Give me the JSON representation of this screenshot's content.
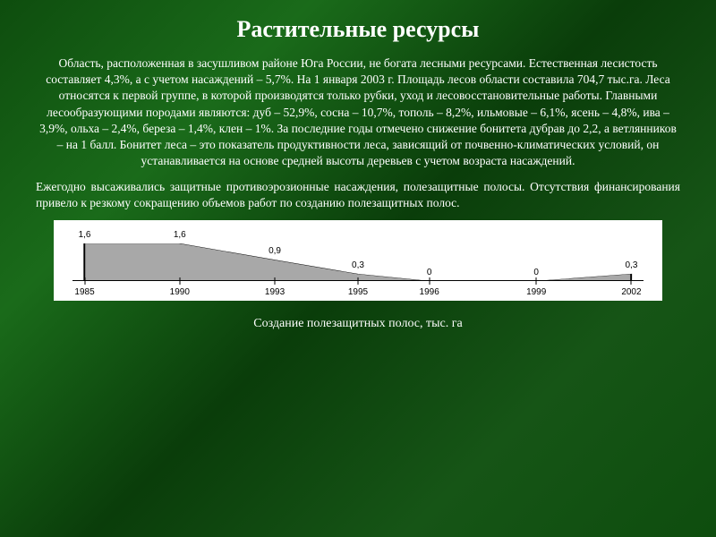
{
  "title": "Растительные ресурсы",
  "paragraph1": "Область, расположенная в засушливом районе Юга России, не богата лесными ресурсами. Естественная лесистость составляет 4,3%, а с учетом насаждений – 5,7%. На 1 января 2003 г. Площадь лесов области составила 704,7 тыс.га. Леса относятся к первой группе, в которой производятся только рубки, уход и лесовосстановительные работы. Главными лесообразующими породами являются: дуб – 52,9%, сосна – 10,7%, тополь – 8,2%, ильмовые – 6,1%, ясень – 4,8%, ива – 3,9%, ольха – 2,4%, береза – 1,4%, клен – 1%. За последние годы отмечено снижение бонитета дубрав до 2,2, а ветлянников – на 1 балл. Бонитет леса – это показатель продуктивности леса, зависящий от почвенно-климатических условий, он устанавливается на основе средней высоты деревьев с учетом возраста насаждений.",
  "paragraph2": "Ежегодно высаживались защитные противоэрозионные насаждения, полезащитные полосы. Отсутствия финансирования привело к резкому сокращению объемов работ по созданию полезащитных полос.",
  "chart": {
    "type": "area",
    "years": [
      "1985",
      "1990",
      "1993",
      "1995",
      "1996",
      "1999",
      "2002"
    ],
    "values": [
      "1,6",
      "1,6",
      "0,9",
      "0,3",
      "0",
      "0",
      "0,3"
    ],
    "numeric_values": [
      1.6,
      1.6,
      0.9,
      0.3,
      0,
      0,
      0.3
    ],
    "x_positions_pct": [
      4,
      20,
      36,
      50,
      62,
      80,
      96
    ],
    "y_max": 1.6,
    "area_fill": "#a8a8a8",
    "area_stroke": "#000000",
    "axis_color": "#000000",
    "background": "#ffffff",
    "label_fontsize": 10,
    "label_color": "#000000"
  },
  "caption": "Создание полезащитных полос, тыс. га",
  "colors": {
    "slide_bg_gradient": [
      "#0e4d0e",
      "#1a6b1a",
      "#0a3d0a",
      "#165516",
      "#0e4d0e"
    ],
    "text": "#ffffff"
  }
}
